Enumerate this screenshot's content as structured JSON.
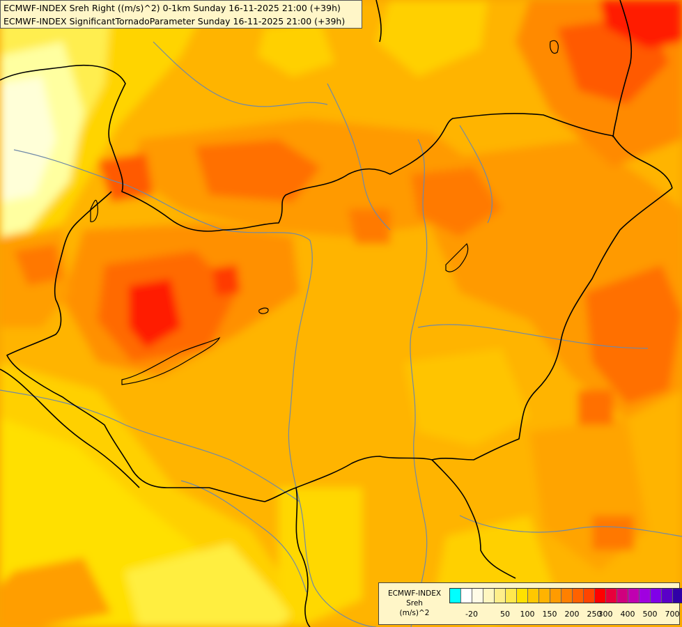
{
  "titles": {
    "line1": "ECMWF-INDEX Sreh Right ((m/s)^2) 0-1km Sunday 16-11-2025 21:00 (+39h)",
    "line2": "ECMWF-INDEX SignificantTornadoParameter Sunday 16-11-2025 21:00 (+39h)"
  },
  "legend": {
    "model": "ECMWF-INDEX",
    "parameter": "Sreh",
    "unit": "(m/s)^2",
    "swatch_colors": [
      "#00ffff",
      "#ffffff",
      "#fffbe6",
      "#fff6c0",
      "#ffee8a",
      "#ffe84d",
      "#ffe100",
      "#ffc800",
      "#ffb300",
      "#ff9b00",
      "#ff8000",
      "#ff6200",
      "#ff4400",
      "#ff0000",
      "#e8003c",
      "#d0007e",
      "#c000b0",
      "#a000e0",
      "#8000e8",
      "#5a00c8",
      "#3000a8",
      "#10107a"
    ],
    "tick_labels": [
      "-20",
      "50",
      "100",
      "150",
      "200",
      "250",
      "300",
      "400",
      "500",
      "700"
    ]
  },
  "colors": {
    "light_yellow": "#ffff9c",
    "yellow": "#ffe000",
    "orange_yellow": "#ffc800",
    "orange": "#ff9e00",
    "dark_orange": "#ff7a00",
    "red_orange": "#ff5200",
    "red": "#ff1400",
    "border_line": "#000000",
    "river_line": "#6f89a8"
  }
}
